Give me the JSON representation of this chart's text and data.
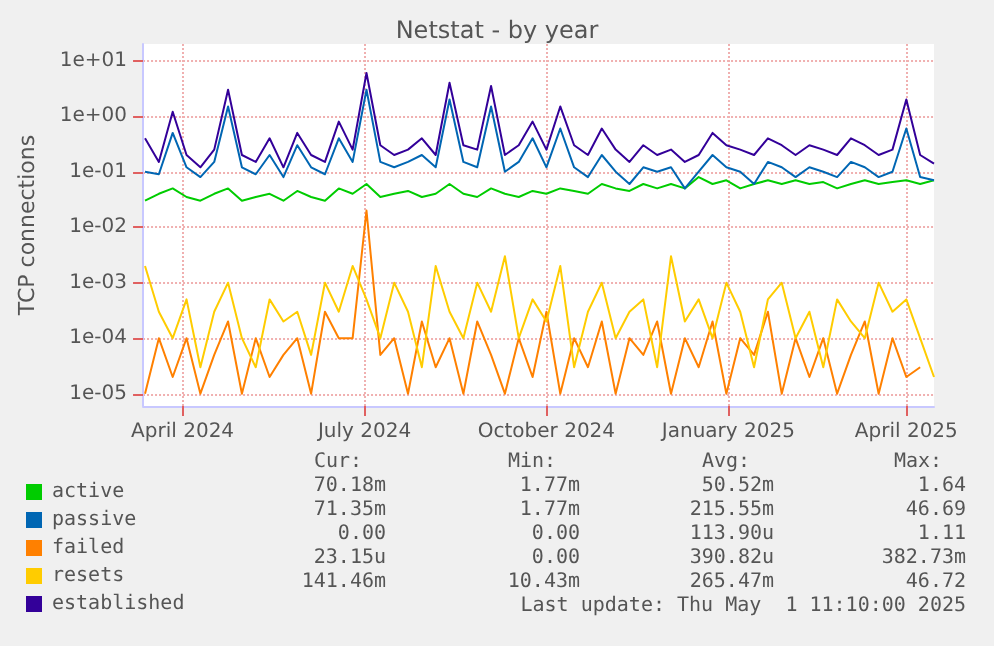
{
  "chart_data": {
    "type": "line",
    "title": "Netstat - by year",
    "ylabel": "TCP connections",
    "x": [
      "2024-03-28",
      "2024-04-04",
      "2024-04-11",
      "2024-04-18",
      "2024-04-25",
      "2024-05-02",
      "2024-05-09",
      "2024-05-16",
      "2024-05-23",
      "2024-05-30",
      "2024-06-06",
      "2024-06-13",
      "2024-06-20",
      "2024-06-27",
      "2024-07-04",
      "2024-07-11",
      "2024-07-18",
      "2024-07-25",
      "2024-08-01",
      "2024-08-08",
      "2024-08-15",
      "2024-08-22",
      "2024-08-29",
      "2024-09-05",
      "2024-09-12",
      "2024-09-19",
      "2024-09-26",
      "2024-10-03",
      "2024-10-10",
      "2024-10-17",
      "2024-10-24",
      "2024-10-31",
      "2024-11-07",
      "2024-11-14",
      "2024-11-21",
      "2024-11-28",
      "2024-12-05",
      "2024-12-12",
      "2024-12-19",
      "2024-12-26",
      "2025-01-02",
      "2025-01-09",
      "2025-01-16",
      "2025-01-23",
      "2025-01-30",
      "2025-02-06",
      "2025-02-13",
      "2025-02-20",
      "2025-02-27",
      "2025-03-06",
      "2025-03-13",
      "2025-03-20",
      "2025-03-27",
      "2025-04-03",
      "2025-04-10",
      "2025-04-17",
      "2025-04-24",
      "2025-05-01"
    ],
    "series": [
      {
        "name": "active",
        "color": "#00cc00",
        "values": [
          0.03,
          0.04,
          0.05,
          0.035,
          0.03,
          0.04,
          0.05,
          0.03,
          0.035,
          0.04,
          0.03,
          0.045,
          0.035,
          0.03,
          0.05,
          0.04,
          0.06,
          0.035,
          0.04,
          0.045,
          0.035,
          0.04,
          0.06,
          0.04,
          0.035,
          0.05,
          0.04,
          0.035,
          0.045,
          0.04,
          0.05,
          0.045,
          0.04,
          0.06,
          0.05,
          0.045,
          0.06,
          0.05,
          0.06,
          0.05,
          0.08,
          0.06,
          0.07,
          0.05,
          0.06,
          0.07,
          0.06,
          0.07,
          0.06,
          0.065,
          0.05,
          0.06,
          0.07,
          0.06,
          0.065,
          0.07,
          0.06,
          0.07
        ]
      },
      {
        "name": "passive",
        "color": "#0066b3",
        "values": [
          0.1,
          0.09,
          0.5,
          0.12,
          0.08,
          0.15,
          1.5,
          0.12,
          0.09,
          0.2,
          0.08,
          0.3,
          0.12,
          0.09,
          0.4,
          0.15,
          3,
          0.15,
          0.12,
          0.15,
          0.2,
          0.12,
          2,
          0.15,
          0.12,
          1.5,
          0.1,
          0.15,
          0.4,
          0.12,
          0.6,
          0.12,
          0.08,
          0.2,
          0.1,
          0.06,
          0.12,
          0.1,
          0.12,
          0.05,
          0.1,
          0.2,
          0.12,
          0.1,
          0.06,
          0.15,
          0.12,
          0.08,
          0.12,
          0.1,
          0.08,
          0.15,
          0.12,
          0.08,
          0.1,
          0.6,
          0.08,
          0.07
        ]
      },
      {
        "name": "failed",
        "color": "#ff8000",
        "values": [
          1e-05,
          0.0001,
          2e-05,
          0.0001,
          1e-05,
          5e-05,
          0.0002,
          1e-05,
          0.0001,
          2e-05,
          5e-05,
          0.0001,
          1e-05,
          0.0003,
          0.0001,
          0.0001,
          0.02,
          5e-05,
          0.0001,
          1e-05,
          0.0002,
          3e-05,
          0.0001,
          1e-05,
          0.0002,
          5e-05,
          1e-05,
          0.0001,
          2e-05,
          0.0003,
          1e-05,
          0.0001,
          3e-05,
          0.0002,
          1e-05,
          0.0001,
          5e-05,
          0.0002,
          1e-05,
          0.0001,
          3e-05,
          0.0002,
          1e-05,
          0.0001,
          5e-05,
          0.0003,
          1e-05,
          0.0001,
          2e-05,
          0.0001,
          1e-05,
          5e-05,
          0.0002,
          1e-05,
          0.0001,
          2e-05,
          3e-05,
          null
        ]
      },
      {
        "name": "resets",
        "color": "#ffcc00",
        "values": [
          0.002,
          0.0003,
          0.0001,
          0.0005,
          3e-05,
          0.0003,
          0.001,
          0.0001,
          3e-05,
          0.0005,
          0.0002,
          0.0003,
          5e-05,
          0.001,
          0.0003,
          0.002,
          0.0005,
          0.0001,
          0.001,
          0.0003,
          3e-05,
          0.002,
          0.0003,
          0.0001,
          0.001,
          0.0003,
          0.003,
          0.0001,
          0.0005,
          0.0002,
          0.002,
          3e-05,
          0.0003,
          0.001,
          0.0001,
          0.0003,
          0.0005,
          3e-05,
          0.003,
          0.0002,
          0.0005,
          0.0001,
          0.001,
          0.0003,
          3e-05,
          0.0005,
          0.001,
          0.0001,
          0.0003,
          3e-05,
          0.0005,
          0.0002,
          0.0001,
          0.001,
          0.0003,
          0.0005,
          0.0001,
          2e-05
        ]
      },
      {
        "name": "established",
        "color": "#330099",
        "values": [
          0.4,
          0.15,
          1.2,
          0.2,
          0.12,
          0.25,
          3,
          0.2,
          0.15,
          0.4,
          0.12,
          0.5,
          0.2,
          0.15,
          0.8,
          0.25,
          6,
          0.3,
          0.2,
          0.25,
          0.4,
          0.2,
          4,
          0.3,
          0.25,
          3.5,
          0.2,
          0.3,
          0.8,
          0.25,
          1.5,
          0.3,
          0.2,
          0.6,
          0.25,
          0.15,
          0.3,
          0.2,
          0.25,
          0.15,
          0.2,
          0.5,
          0.3,
          0.25,
          0.2,
          0.4,
          0.3,
          0.2,
          0.3,
          0.25,
          0.2,
          0.4,
          0.3,
          0.2,
          0.25,
          2,
          0.2,
          0.14
        ]
      }
    ],
    "log": "y",
    "ylim": [
      6e-06,
      20
    ],
    "yticks": [
      {
        "value": 1e-05,
        "label": "1e-05"
      },
      {
        "value": 0.0001,
        "label": "1e-04"
      },
      {
        "value": 0.001,
        "label": "1e-03"
      },
      {
        "value": 0.01,
        "label": "1e-02"
      },
      {
        "value": 0.1,
        "label": "1e-01"
      },
      {
        "value": 1,
        "label": "1e+00"
      },
      {
        "value": 10,
        "label": "1e+01"
      }
    ],
    "xlim": [
      "2024-03-27",
      "2025-05-01"
    ],
    "xticks": [
      {
        "value": "2024-04-16",
        "label": "April 2024"
      },
      {
        "value": "2024-07-17",
        "label": "July 2024"
      },
      {
        "value": "2024-10-17",
        "label": "October 2024"
      },
      {
        "value": "2025-01-17",
        "label": "January 2025"
      },
      {
        "value": "2025-04-17",
        "label": "April 2025"
      }
    ],
    "grid": true,
    "legend": "bottom",
    "marker": "none",
    "line_style": "solid",
    "annotations": [
      "Cur:",
      "Min:",
      "Avg:",
      "Max:",
      "70.18m",
      "1.77m",
      "50.52m",
      "1.64",
      "71.35m",
      "1.77m",
      "215.55m",
      "46.69",
      "0.00",
      "0.00",
      "113.90u",
      "1.11",
      "23.15u",
      "0.00",
      "390.82u",
      "382.73m",
      "141.46m",
      "10.43m",
      "265.47m",
      "46.72",
      "Last update: Thu May  1 11:10:00 2025"
    ]
  }
}
